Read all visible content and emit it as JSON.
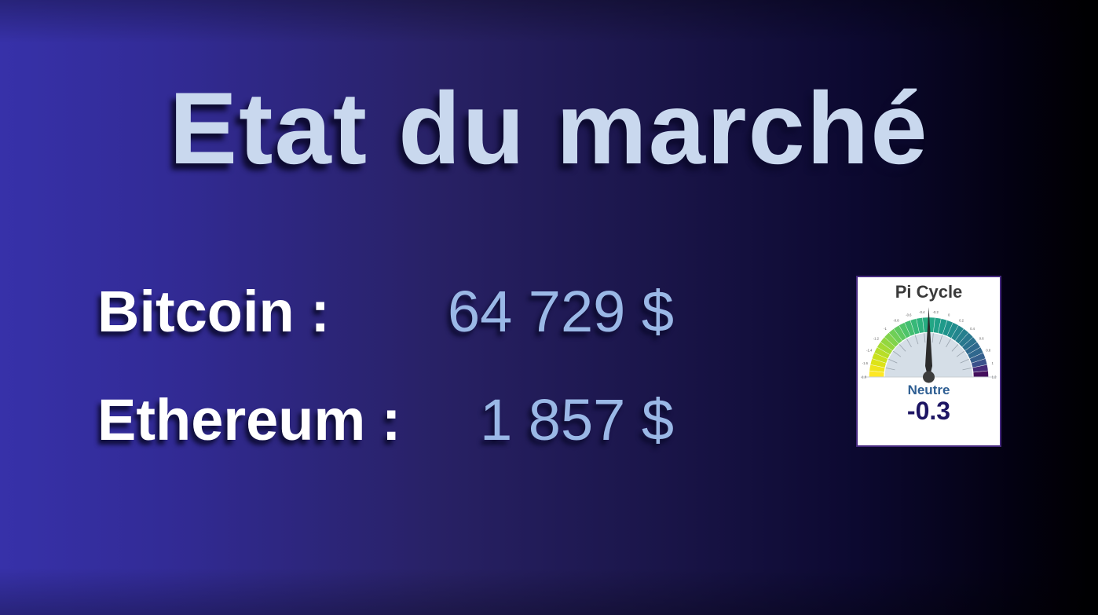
{
  "slide": {
    "title": "Etat du marché",
    "rows": [
      {
        "label": "Bitcoin :",
        "value": "64 729 $"
      },
      {
        "label": "Ethereum :",
        "value": "1 857 $"
      }
    ]
  },
  "chart_data": {
    "type": "gauge",
    "title": "Pi Cycle",
    "status_label": "Neutre",
    "value_display": "-0.3",
    "value": -0.3,
    "axis_min": -1.8,
    "axis_max": 1.2,
    "tick_step": 0.2,
    "tick_labels": [
      "-1.8",
      "-1.6",
      "-1.4",
      "-1.2",
      "-1",
      "-0.8",
      "-0.6",
      "-0.4",
      "-0.2",
      "0",
      "0.2",
      "0.4",
      "0.6",
      "0.8",
      "1",
      "1.2"
    ],
    "colormap_left_to_right": [
      "#FDE725",
      "#EEE51C",
      "#DDE318",
      "#CAE11E",
      "#B8DE28",
      "#A5DB33",
      "#93D73F",
      "#81D34B",
      "#6FCF57",
      "#5EC961",
      "#4FC46A",
      "#42BE71",
      "#37B878",
      "#2DB27D",
      "#27AC81",
      "#23A685",
      "#20A087",
      "#1F9A8A",
      "#1F938B",
      "#208D8D",
      "#22868D",
      "#257F8E",
      "#28788E",
      "#2B718E",
      "#2E698E",
      "#30688E",
      "#355F8D",
      "#3B518B",
      "#462A78",
      "#440E5C"
    ],
    "legend_position": "none",
    "grid": false
  },
  "style": {
    "bg_gradient_left": "#3731A9",
    "bg_gradient_right": "#000000",
    "title_color": "#C9D8EE",
    "label_color": "#FFFFFF",
    "value_color": "#9AB8E6",
    "card_bg": "#FFFFFF",
    "card_border": "#472A80",
    "card_title_color": "#3A3A3A",
    "gauge_inner_fill": "#D5DEE7",
    "gauge_tick_line": "#9AA4AE",
    "gauge_tick_text": "#5A5A5A",
    "gauge_baseline": "#C9CDD3",
    "needle": "#2B2B2B",
    "pivot": "#3D3D3D",
    "status_color": "#2E5E92",
    "gauge_value_color": "#1D1563"
  }
}
